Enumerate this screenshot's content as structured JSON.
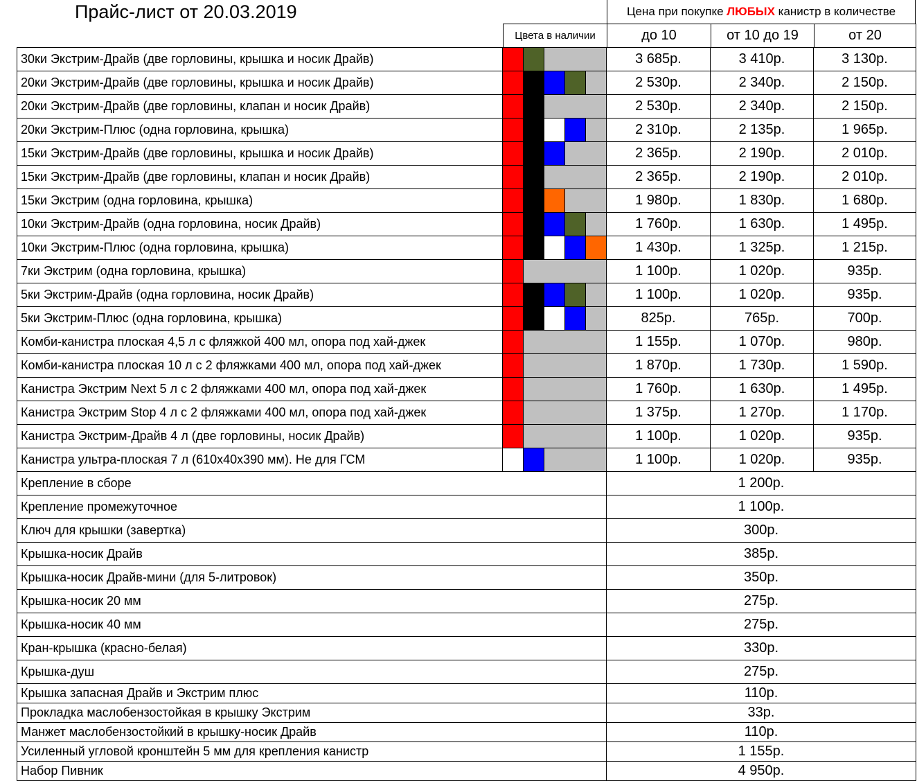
{
  "title": "Прайс-лист от 20.03.2019",
  "price_header": {
    "prefix": "Цена при покупке ",
    "highlight": "ЛЮБЫХ",
    "suffix": " канистр в количестве"
  },
  "columns": {
    "colors": "Цвета в наличии",
    "q1": "до 10",
    "q2": "от 10 до 19",
    "q3": "от 20"
  },
  "palette": {
    "red": "#ff0000",
    "black": "#000000",
    "blue": "#0000ff",
    "olive": "#4f6228",
    "white": "#ffffff",
    "orange": "#ff6600",
    "gray": "#c0c0c0"
  },
  "products": [
    {
      "name": "30ки Экстрим-Драйв (две горловины, крышка и носик Драйв)",
      "colors": [
        "red",
        "olive"
      ],
      "p1": "3 685р.",
      "p2": "3 410р.",
      "p3": "3 130р."
    },
    {
      "name": "20ки Экстрим-Драйв (две горловины, крышка и носик Драйв)",
      "colors": [
        "red",
        "black",
        "blue",
        "olive"
      ],
      "p1": "2 530р.",
      "p2": "2 340р.",
      "p3": "2 150р."
    },
    {
      "name": "20ки Экстрим-Драйв (две горловины, клапан и носик Драйв)",
      "colors": [
        "red",
        "black"
      ],
      "p1": "2 530р.",
      "p2": "2 340р.",
      "p3": "2 150р."
    },
    {
      "name": "20ки Экстрим-Плюс (одна горловина, крышка)",
      "colors": [
        "red",
        "black",
        "white",
        "blue"
      ],
      "p1": "2 310р.",
      "p2": "2 135р.",
      "p3": "1 965р."
    },
    {
      "name": "15ки Экстрим-Драйв (две горловины, крышка и носик Драйв)",
      "colors": [
        "red",
        "black",
        "blue"
      ],
      "p1": "2 365р.",
      "p2": "2 190р.",
      "p3": "2 010р."
    },
    {
      "name": "15ки Экстрим-Драйв (две горловины, клапан и носик Драйв)",
      "colors": [
        "red",
        "black"
      ],
      "p1": "2 365р.",
      "p2": "2 190р.",
      "p3": "2 010р."
    },
    {
      "name": "15ки Экстрим (одна горловина, крышка)",
      "colors": [
        "red",
        "black",
        "orange"
      ],
      "p1": "1 980р.",
      "p2": "1 830р.",
      "p3": "1 680р."
    },
    {
      "name": "10ки Экстрим-Драйв (одна горловина, носик Драйв)",
      "colors": [
        "red",
        "black",
        "blue",
        "olive"
      ],
      "p1": "1 760р.",
      "p2": "1 630р.",
      "p3": "1 495р."
    },
    {
      "name": "10ки Экстрим-Плюс (одна горловина, крышка)",
      "colors": [
        "red",
        "black",
        "white",
        "blue",
        "orange"
      ],
      "p1": "1 430р.",
      "p2": "1 325р.",
      "p3": "1 215р."
    },
    {
      "name": "7ки Экстрим (одна горловина, крышка)",
      "colors": [
        "red"
      ],
      "p1": "1 100р.",
      "p2": "1 020р.",
      "p3": "935р."
    },
    {
      "name": "5ки Экстрим-Драйв (одна горловина, носик Драйв)",
      "colors": [
        "red",
        "black",
        "blue",
        "olive"
      ],
      "p1": "1 100р.",
      "p2": "1 020р.",
      "p3": "935р."
    },
    {
      "name": "5ки Экстрим-Плюс (одна горловина, крышка)",
      "colors": [
        "red",
        "black",
        "white",
        "blue"
      ],
      "p1": "825р.",
      "p2": "765р.",
      "p3": "700р."
    },
    {
      "name": "Комби-канистра плоская 4,5 л с фляжкой 400 мл, опора под хай-джек",
      "colors": [
        "red"
      ],
      "p1": "1 155р.",
      "p2": "1 070р.",
      "p3": "980р."
    },
    {
      "name": "Комби-канистра плоская 10 л с 2 фляжками 400 мл, опора под хай-джек",
      "colors": [
        "red"
      ],
      "p1": "1 870р.",
      "p2": "1 730р.",
      "p3": "1 590р."
    },
    {
      "name": "Канистра Экстрим Next 5 л с 2 фляжками 400 мл, опора под хай-джек",
      "colors": [
        "red"
      ],
      "p1": "1 760р.",
      "p2": "1 630р.",
      "p3": "1 495р."
    },
    {
      "name": "Канистра Экстрим Stop 4 л с 2 фляжками 400 мл, опора под хай-джек",
      "colors": [
        "red"
      ],
      "p1": "1 375р.",
      "p2": "1 270р.",
      "p3": "1 170р."
    },
    {
      "name": "Канистра Экстрим-Драйв 4 л (две горловины, носик Драйв)",
      "colors": [
        "red"
      ],
      "p1": "1 100р.",
      "p2": "1 020р.",
      "p3": "935р."
    },
    {
      "name": "Канистра ультра-плоская 7 л (610х40х390 мм). Не для ГСМ",
      "colors": [
        "white",
        "blue"
      ],
      "p1": "1 100р.",
      "p2": "1 020р.",
      "p3": "935р."
    }
  ],
  "accessories": [
    {
      "name": "Крепление в сборе",
      "price": "1 200р."
    },
    {
      "name": "Крепление промежуточное",
      "price": "1 100р."
    },
    {
      "name": "Ключ для крышки (завертка)",
      "price": "300р."
    },
    {
      "name": "Крышка-носик Драйв",
      "price": "385р."
    },
    {
      "name": "Крышка-носик Драйв-мини (для 5-литровок)",
      "price": "350р."
    },
    {
      "name": "Крышка-носик 20 мм",
      "price": "275р."
    },
    {
      "name": "Крышка-носик 40 мм",
      "price": "275р."
    },
    {
      "name": "Кран-крышка (красно-белая)",
      "price": "330р."
    },
    {
      "name": "Крышка-душ",
      "price": "275р."
    }
  ],
  "extras": [
    {
      "name": "Крышка запасная Драйв и Экстрим плюс",
      "price": "110р."
    },
    {
      "name": "Прокладка маслобензостойкая в крышку Экстрим",
      "price": "33р."
    },
    {
      "name": "Манжет маслобензостойкий в крышку-носик Драйв",
      "price": "110р."
    },
    {
      "name": "Усиленный угловой кронштейн 5 мм для крепления канистр",
      "price": "1 155р."
    },
    {
      "name": "Набор Пивник",
      "price": "4 950р."
    }
  ]
}
